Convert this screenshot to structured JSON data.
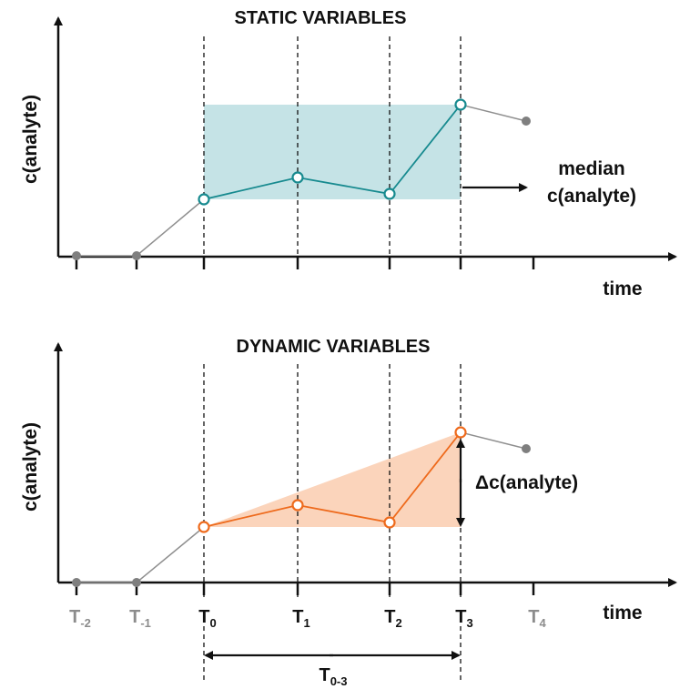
{
  "static_panel": {
    "title": "STATIC VARIABLES",
    "ylabel": "c(analyte)",
    "xlabel": "time",
    "annotation_line1": "median",
    "annotation_line2": "c(analyte)"
  },
  "dynamic_panel": {
    "title": "DYNAMIC VARIABLES",
    "ylabel": "c(analyte)",
    "xlabel": "time",
    "delta_label": "Δc(analyte)",
    "span_label_base": "T",
    "span_label_sub": "0-3"
  },
  "time_points": [
    {
      "base": "T",
      "sub": "-2",
      "emphasis": false
    },
    {
      "base": "T",
      "sub": "-1",
      "emphasis": false
    },
    {
      "base": "T",
      "sub": "0",
      "emphasis": true
    },
    {
      "base": "T",
      "sub": "1",
      "emphasis": true
    },
    {
      "base": "T",
      "sub": "2",
      "emphasis": true
    },
    {
      "base": "T",
      "sub": "3",
      "emphasis": true
    },
    {
      "base": "T",
      "sub": "4",
      "emphasis": false
    }
  ],
  "colors": {
    "static_line": "#178a8f",
    "static_fill": "#c5e3e6",
    "dynamic_line": "#ee6a1c",
    "dynamic_fill": "#fbd4bb",
    "grey_points": "#7f7f7f",
    "axis": "#111111",
    "emphasis_label": "#111111",
    "muted_label": "#8c8c8c"
  }
}
